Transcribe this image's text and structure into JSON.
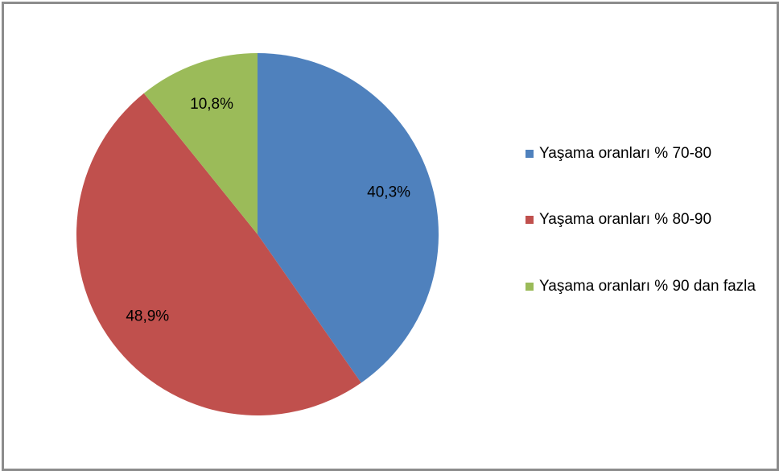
{
  "chart_data": {
    "type": "pie",
    "categories": [
      "Yaşama oranları % 70-80",
      "Yaşama oranları % 80-90",
      "Yaşama oranları % 90 dan fazla"
    ],
    "values": [
      40.3,
      48.9,
      10.8
    ],
    "value_labels": [
      "40,3%",
      "48,9%",
      "10,8%"
    ],
    "colors": [
      "#4f81bd",
      "#c0504d",
      "#9bbb59"
    ],
    "legend": "right"
  }
}
